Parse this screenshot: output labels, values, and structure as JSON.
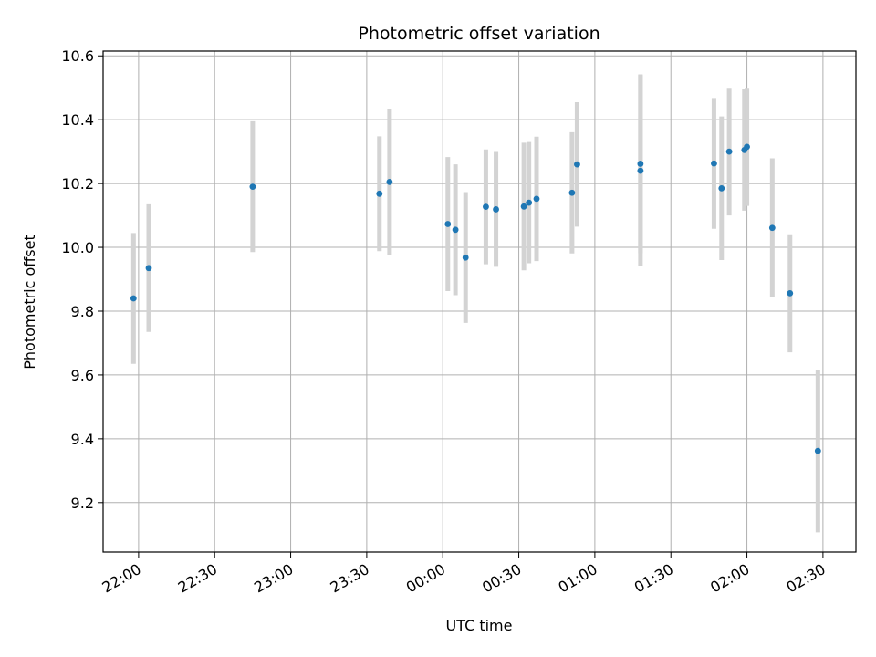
{
  "chart_data": {
    "type": "scatter",
    "title": "Photometric offset variation",
    "xlabel": "UTC time",
    "ylabel": "Photometric offset",
    "x_ticks": [
      "22:00",
      "22:30",
      "23:00",
      "23:30",
      "00:00",
      "00:30",
      "01:00",
      "01:30",
      "02:00",
      "02:30"
    ],
    "y_ticks": [
      "9.2",
      "9.4",
      "9.6",
      "9.8",
      "10.0",
      "10.2",
      "10.4",
      "10.6"
    ],
    "xlim": [
      "21:46",
      "02:43"
    ],
    "ylim": [
      9.045,
      10.615
    ],
    "grid": true,
    "errorbar_color": "#d3d3d3",
    "marker_color": "#1f77b4",
    "points": [
      {
        "x": "21:58",
        "y": 9.84,
        "err": 0.205
      },
      {
        "x": "22:04",
        "y": 9.935,
        "err": 0.2
      },
      {
        "x": "22:45",
        "y": 10.19,
        "err": 0.205
      },
      {
        "x": "23:35",
        "y": 10.168,
        "err": 0.18
      },
      {
        "x": "23:39",
        "y": 10.205,
        "err": 0.23
      },
      {
        "x": "00:02",
        "y": 10.073,
        "err": 0.21
      },
      {
        "x": "00:05",
        "y": 10.055,
        "err": 0.205
      },
      {
        "x": "00:09",
        "y": 9.968,
        "err": 0.205
      },
      {
        "x": "00:17",
        "y": 10.127,
        "err": 0.18
      },
      {
        "x": "00:21",
        "y": 10.119,
        "err": 0.18
      },
      {
        "x": "00:32",
        "y": 10.128,
        "err": 0.2
      },
      {
        "x": "00:34",
        "y": 10.14,
        "err": 0.19
      },
      {
        "x": "00:37",
        "y": 10.152,
        "err": 0.195
      },
      {
        "x": "00:51",
        "y": 10.171,
        "err": 0.19
      },
      {
        "x": "00:53",
        "y": 10.26,
        "err": 0.195
      },
      {
        "x": "01:18",
        "y": 10.24,
        "err": 0.3
      },
      {
        "x": "01:18",
        "y": 10.262,
        "err": 0.28
      },
      {
        "x": "01:47",
        "y": 10.263,
        "err": 0.205
      },
      {
        "x": "01:50",
        "y": 10.185,
        "err": 0.225
      },
      {
        "x": "01:53",
        "y": 10.3,
        "err": 0.2
      },
      {
        "x": "01:59",
        "y": 10.305,
        "err": 0.19
      },
      {
        "x": "02:00",
        "y": 10.315,
        "err": 0.185
      },
      {
        "x": "02:10",
        "y": 10.061,
        "err": 0.218
      },
      {
        "x": "02:17",
        "y": 9.856,
        "err": 0.185
      },
      {
        "x": "02:28",
        "y": 9.362,
        "err": 0.255
      }
    ]
  }
}
